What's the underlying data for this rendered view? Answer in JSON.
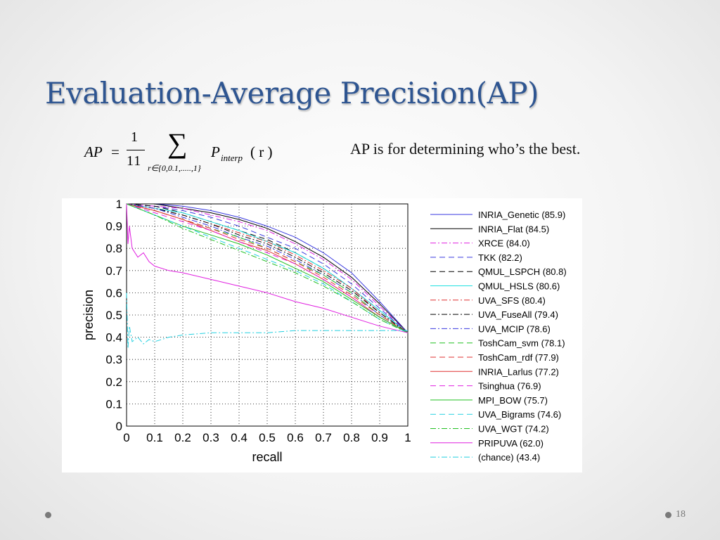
{
  "slide": {
    "title": "Evaluation-Average Precision(AP)",
    "note": "AP is for determining who’s the best.",
    "page_number": "18"
  },
  "formula": {
    "lhs": "AP",
    "equals": "=",
    "numerator": "1",
    "denominator": "11",
    "sum_symbol": "∑",
    "subscript": "r∈{0,0.1,.....,1}",
    "p": "P",
    "p_sub": "interp",
    "arg": "( r )"
  },
  "chart_data": {
    "type": "line",
    "xlabel": "recall",
    "ylabel": "precision",
    "xlim": [
      0,
      1
    ],
    "ylim": [
      0,
      1
    ],
    "xticks": [
      "0",
      "0.1",
      "0.2",
      "0.3",
      "0.4",
      "0.5",
      "0.6",
      "0.7",
      "0.8",
      "0.9",
      "1"
    ],
    "yticks": [
      "0",
      "0.1",
      "0.2",
      "0.3",
      "0.4",
      "0.5",
      "0.6",
      "0.7",
      "0.8",
      "0.9",
      "1"
    ],
    "grid": true,
    "legend_position": "right",
    "series": [
      {
        "name": "INRIA_Genetic (85.9)",
        "color": "#3a3ae0",
        "dash": "solid",
        "x": [
          0,
          0.1,
          0.2,
          0.3,
          0.4,
          0.5,
          0.6,
          0.7,
          0.8,
          0.9,
          1
        ],
        "y": [
          1,
          1,
          0.99,
          0.97,
          0.94,
          0.9,
          0.85,
          0.78,
          0.69,
          0.56,
          0.42
        ]
      },
      {
        "name": "INRIA_Flat (84.5)",
        "color": "#000000",
        "dash": "solid",
        "x": [
          0,
          0.1,
          0.2,
          0.3,
          0.4,
          0.5,
          0.6,
          0.7,
          0.8,
          0.9,
          1
        ],
        "y": [
          1,
          1,
          0.98,
          0.96,
          0.93,
          0.89,
          0.83,
          0.76,
          0.67,
          0.55,
          0.42
        ]
      },
      {
        "name": "XRCE (84.0)",
        "color": "#e020e0",
        "dash": "dashdot",
        "x": [
          0,
          0.1,
          0.2,
          0.3,
          0.4,
          0.5,
          0.6,
          0.7,
          0.8,
          0.9,
          1
        ],
        "y": [
          1,
          0.99,
          0.98,
          0.95,
          0.92,
          0.88,
          0.82,
          0.75,
          0.66,
          0.54,
          0.42
        ]
      },
      {
        "name": "TKK (82.2)",
        "color": "#3a3ae0",
        "dash": "dashed",
        "x": [
          0,
          0.1,
          0.2,
          0.3,
          0.4,
          0.5,
          0.6,
          0.7,
          0.8,
          0.9,
          1
        ],
        "y": [
          1,
          0.99,
          0.97,
          0.94,
          0.9,
          0.85,
          0.8,
          0.73,
          0.64,
          0.53,
          0.42
        ]
      },
      {
        "name": "QMUL_LSPCH (80.8)",
        "color": "#000000",
        "dash": "dashed",
        "x": [
          0,
          0.1,
          0.2,
          0.3,
          0.4,
          0.5,
          0.6,
          0.7,
          0.8,
          0.9,
          1
        ],
        "y": [
          1,
          0.99,
          0.96,
          0.92,
          0.88,
          0.84,
          0.78,
          0.71,
          0.62,
          0.52,
          0.42
        ]
      },
      {
        "name": "QMUL_HSLS (80.6)",
        "color": "#22e0e0",
        "dash": "solid",
        "x": [
          0,
          0.1,
          0.2,
          0.3,
          0.4,
          0.5,
          0.6,
          0.7,
          0.8,
          0.9,
          1
        ],
        "y": [
          1,
          0.98,
          0.96,
          0.92,
          0.88,
          0.83,
          0.78,
          0.71,
          0.62,
          0.52,
          0.42
        ]
      },
      {
        "name": "UVA_SFS (80.4)",
        "color": "#e03030",
        "dash": "dashdot",
        "x": [
          0,
          0.1,
          0.2,
          0.3,
          0.4,
          0.5,
          0.6,
          0.7,
          0.8,
          0.9,
          1
        ],
        "y": [
          1,
          0.98,
          0.95,
          0.91,
          0.87,
          0.83,
          0.77,
          0.7,
          0.62,
          0.51,
          0.42
        ]
      },
      {
        "name": "UVA_FuseAll (79.4)",
        "color": "#000000",
        "dash": "dashdot",
        "x": [
          0,
          0.1,
          0.2,
          0.3,
          0.4,
          0.5,
          0.6,
          0.7,
          0.8,
          0.9,
          1
        ],
        "y": [
          1,
          0.98,
          0.95,
          0.91,
          0.86,
          0.82,
          0.76,
          0.69,
          0.61,
          0.51,
          0.42
        ]
      },
      {
        "name": "UVA_MCIP (78.6)",
        "color": "#3a3ae0",
        "dash": "dashdot",
        "x": [
          0,
          0.1,
          0.2,
          0.3,
          0.4,
          0.5,
          0.6,
          0.7,
          0.8,
          0.9,
          1
        ],
        "y": [
          1,
          0.98,
          0.94,
          0.9,
          0.85,
          0.81,
          0.75,
          0.68,
          0.6,
          0.5,
          0.42
        ]
      },
      {
        "name": "ToshCam_svm (78.1)",
        "color": "#22c022",
        "dash": "dashed",
        "x": [
          0,
          0.1,
          0.2,
          0.3,
          0.4,
          0.5,
          0.6,
          0.7,
          0.8,
          0.9,
          1
        ],
        "y": [
          1,
          0.97,
          0.93,
          0.89,
          0.85,
          0.8,
          0.74,
          0.68,
          0.6,
          0.5,
          0.42
        ]
      },
      {
        "name": "ToshCam_rdf (77.9)",
        "color": "#e03030",
        "dash": "dashed",
        "x": [
          0,
          0.1,
          0.2,
          0.3,
          0.4,
          0.5,
          0.6,
          0.7,
          0.8,
          0.9,
          1
        ],
        "y": [
          1,
          0.97,
          0.93,
          0.89,
          0.84,
          0.8,
          0.74,
          0.67,
          0.59,
          0.5,
          0.42
        ]
      },
      {
        "name": "INRIA_Larlus (77.2)",
        "color": "#e03030",
        "dash": "solid",
        "x": [
          0,
          0.1,
          0.2,
          0.3,
          0.4,
          0.5,
          0.6,
          0.7,
          0.8,
          0.9,
          1
        ],
        "y": [
          1,
          0.97,
          0.93,
          0.88,
          0.83,
          0.79,
          0.73,
          0.66,
          0.58,
          0.49,
          0.42
        ]
      },
      {
        "name": "Tsinghua (76.9)",
        "color": "#e020e0",
        "dash": "dashed",
        "x": [
          0,
          0.1,
          0.2,
          0.3,
          0.4,
          0.5,
          0.6,
          0.7,
          0.8,
          0.9,
          1
        ],
        "y": [
          1,
          0.96,
          0.92,
          0.88,
          0.83,
          0.78,
          0.73,
          0.66,
          0.58,
          0.49,
          0.42
        ]
      },
      {
        "name": "MPI_BOW (75.7)",
        "color": "#22c022",
        "dash": "solid",
        "x": [
          0,
          0.1,
          0.2,
          0.3,
          0.4,
          0.5,
          0.6,
          0.7,
          0.8,
          0.9,
          1
        ],
        "y": [
          1,
          0.95,
          0.9,
          0.86,
          0.82,
          0.77,
          0.71,
          0.65,
          0.57,
          0.49,
          0.42
        ]
      },
      {
        "name": "UVA_Bigrams (74.6)",
        "color": "#22d0e0",
        "dash": "dashed",
        "x": [
          0,
          0.1,
          0.2,
          0.3,
          0.4,
          0.5,
          0.6,
          0.7,
          0.8,
          0.9,
          1
        ],
        "y": [
          1,
          0.95,
          0.9,
          0.85,
          0.8,
          0.75,
          0.7,
          0.64,
          0.56,
          0.48,
          0.42
        ]
      },
      {
        "name": "UVA_WGT (74.2)",
        "color": "#22c022",
        "dash": "dashdot",
        "x": [
          0,
          0.1,
          0.2,
          0.3,
          0.4,
          0.5,
          0.6,
          0.7,
          0.8,
          0.9,
          1
        ],
        "y": [
          1,
          0.95,
          0.89,
          0.84,
          0.79,
          0.74,
          0.69,
          0.63,
          0.56,
          0.48,
          0.42
        ]
      },
      {
        "name": "PRIPUVA (62.0)",
        "color": "#e020e0",
        "dash": "solid",
        "x": [
          0,
          0.005,
          0.01,
          0.02,
          0.04,
          0.06,
          0.08,
          0.1,
          0.15,
          0.2,
          0.3,
          0.4,
          0.5,
          0.6,
          0.7,
          0.8,
          0.9,
          1
        ],
        "y": [
          1,
          0.82,
          0.9,
          0.8,
          0.76,
          0.78,
          0.74,
          0.72,
          0.7,
          0.69,
          0.66,
          0.63,
          0.6,
          0.56,
          0.53,
          0.49,
          0.45,
          0.42
        ]
      },
      {
        "name": "(chance) (43.4)",
        "color": "#22d0e0",
        "dash": "dashdot",
        "x": [
          0,
          0.005,
          0.01,
          0.02,
          0.04,
          0.06,
          0.08,
          0.1,
          0.15,
          0.2,
          0.3,
          0.4,
          0.5,
          0.6,
          0.7,
          0.8,
          0.9,
          1
        ],
        "y": [
          0.6,
          0.35,
          0.45,
          0.38,
          0.4,
          0.37,
          0.39,
          0.38,
          0.4,
          0.41,
          0.42,
          0.42,
          0.42,
          0.43,
          0.43,
          0.43,
          0.43,
          0.43
        ]
      }
    ]
  }
}
